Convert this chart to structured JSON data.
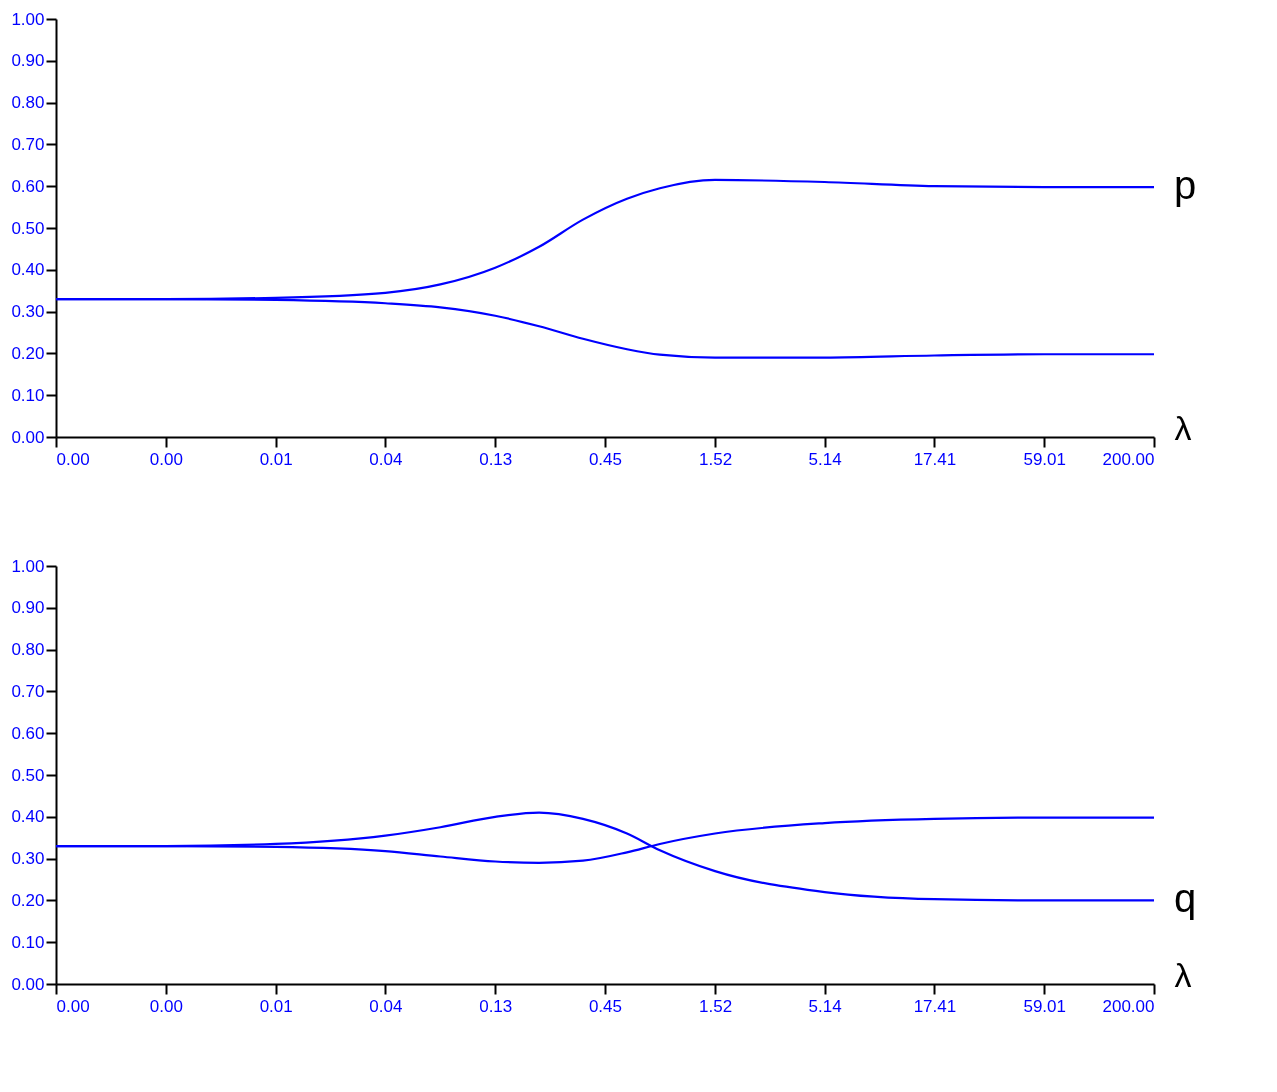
{
  "chart_data": [
    {
      "type": "line",
      "xlabel": "λ",
      "log": "x",
      "grid": false,
      "legend": false,
      "x": [
        0.001,
        0.00339,
        0.0115,
        0.0389,
        0.0717,
        0.132,
        0.215,
        0.35,
        0.571,
        0.823,
        1.52,
        5.14,
        17.4,
        59.0,
        200
      ],
      "series": [
        {
          "name": "p",
          "color": "#0000ff",
          "values": [
            0.33,
            0.33,
            0.333,
            0.345,
            0.365,
            0.405,
            0.455,
            0.52,
            0.57,
            0.595,
            0.615,
            0.61,
            0.6,
            0.598,
            0.598
          ]
        },
        {
          "color": "#0000ff",
          "values": [
            0.33,
            0.33,
            0.328,
            0.32,
            0.31,
            0.29,
            0.265,
            0.235,
            0.21,
            0.197,
            0.19,
            0.19,
            0.195,
            0.198,
            0.198
          ]
        }
      ],
      "xlim": [
        0.001,
        200
      ],
      "xticks": [
        {
          "value": 0.001,
          "label": "0.00"
        },
        {
          "value": 0.00339,
          "label": "0.00"
        },
        {
          "value": 0.0115,
          "label": "0.01"
        },
        {
          "value": 0.0389,
          "label": "0.04"
        },
        {
          "value": 0.132,
          "label": "0.13"
        },
        {
          "value": 0.447,
          "label": "0.45"
        },
        {
          "value": 1.52,
          "label": "1.52"
        },
        {
          "value": 5.14,
          "label": "5.14"
        },
        {
          "value": 17.41,
          "label": "17.41"
        },
        {
          "value": 59.01,
          "label": "59.01"
        },
        {
          "value": 200,
          "label": "200.00"
        }
      ],
      "ylim": [
        0,
        1
      ],
      "yticks": [
        {
          "value": 0,
          "label": "0.00"
        },
        {
          "value": 0.1,
          "label": "0.10"
        },
        {
          "value": 0.2,
          "label": "0.20"
        },
        {
          "value": 0.3,
          "label": "0.30"
        },
        {
          "value": 0.4,
          "label": "0.40"
        },
        {
          "value": 0.5,
          "label": "0.50"
        },
        {
          "value": 0.6,
          "label": "0.60"
        },
        {
          "value": 0.7,
          "label": "0.70"
        },
        {
          "value": 0.8,
          "label": "0.80"
        },
        {
          "value": 0.9,
          "label": "0.90"
        },
        {
          "value": 1,
          "label": "1.00"
        }
      ]
    },
    {
      "type": "line",
      "xlabel": "λ",
      "log": "x",
      "grid": false,
      "legend": false,
      "x": [
        0.001,
        0.00339,
        0.0115,
        0.0389,
        0.0717,
        0.132,
        0.215,
        0.35,
        0.571,
        0.823,
        1.52,
        5.14,
        17.4,
        59.0,
        200
      ],
      "series": [
        {
          "name": "q",
          "color": "#0000ff",
          "values": [
            0.33,
            0.33,
            0.335,
            0.355,
            0.375,
            0.4,
            0.41,
            0.395,
            0.36,
            0.32,
            0.27,
            0.22,
            0.203,
            0.2,
            0.2
          ]
        },
        {
          "color": "#0000ff",
          "values": [
            0.33,
            0.33,
            0.328,
            0.318,
            0.305,
            0.293,
            0.29,
            0.295,
            0.315,
            0.335,
            0.36,
            0.385,
            0.395,
            0.398,
            0.398
          ]
        }
      ],
      "xlim": [
        0.001,
        200
      ],
      "xticks": [
        {
          "value": 0.001,
          "label": "0.00"
        },
        {
          "value": 0.00339,
          "label": "0.00"
        },
        {
          "value": 0.0115,
          "label": "0.01"
        },
        {
          "value": 0.0389,
          "label": "0.04"
        },
        {
          "value": 0.132,
          "label": "0.13"
        },
        {
          "value": 0.447,
          "label": "0.45"
        },
        {
          "value": 1.52,
          "label": "1.52"
        },
        {
          "value": 5.14,
          "label": "5.14"
        },
        {
          "value": 17.41,
          "label": "17.41"
        },
        {
          "value": 59.01,
          "label": "59.01"
        },
        {
          "value": 200,
          "label": "200.00"
        }
      ],
      "ylim": [
        0,
        1
      ],
      "yticks": [
        {
          "value": 0,
          "label": "0.00"
        },
        {
          "value": 0.1,
          "label": "0.10"
        },
        {
          "value": 0.2,
          "label": "0.20"
        },
        {
          "value": 0.3,
          "label": "0.30"
        },
        {
          "value": 0.4,
          "label": "0.40"
        },
        {
          "value": 0.5,
          "label": "0.50"
        },
        {
          "value": 0.6,
          "label": "0.60"
        },
        {
          "value": 0.7,
          "label": "0.70"
        },
        {
          "value": 0.8,
          "label": "0.80"
        },
        {
          "value": 0.9,
          "label": "0.90"
        },
        {
          "value": 1,
          "label": "1.00"
        }
      ]
    }
  ]
}
